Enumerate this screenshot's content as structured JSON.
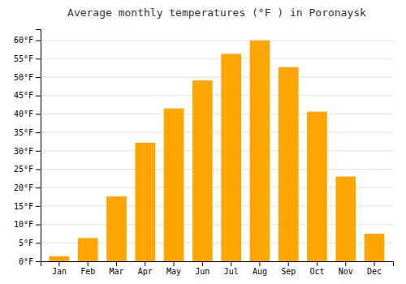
{
  "chart_data": {
    "type": "bar",
    "title": "Average monthly temperatures (°F ) in Poronaysk",
    "categories": [
      "Jan",
      "Feb",
      "Mar",
      "Apr",
      "May",
      "Jun",
      "Jul",
      "Aug",
      "Sep",
      "Oct",
      "Nov",
      "Dec"
    ],
    "values": [
      1.4,
      6.3,
      17.6,
      32.2,
      41.5,
      49.1,
      56.3,
      59.9,
      52.7,
      40.6,
      23.0,
      7.5
    ],
    "color": "#FFA500",
    "ylim": [
      0,
      63
    ],
    "yticks": [
      {
        "value": 0,
        "label": "0°F"
      },
      {
        "value": 5,
        "label": "5°F"
      },
      {
        "value": 10,
        "label": "10°F"
      },
      {
        "value": 15,
        "label": "15°F"
      },
      {
        "value": 20,
        "label": "20°F"
      },
      {
        "value": 25,
        "label": "25°F"
      },
      {
        "value": 30,
        "label": "30°F"
      },
      {
        "value": 35,
        "label": "35°F"
      },
      {
        "value": 40,
        "label": "40°F"
      },
      {
        "value": 45,
        "label": "45°F"
      },
      {
        "value": 50,
        "label": "50°F"
      },
      {
        "value": 55,
        "label": "55°F"
      },
      {
        "value": 60,
        "label": "60°F"
      }
    ],
    "grid": true
  }
}
